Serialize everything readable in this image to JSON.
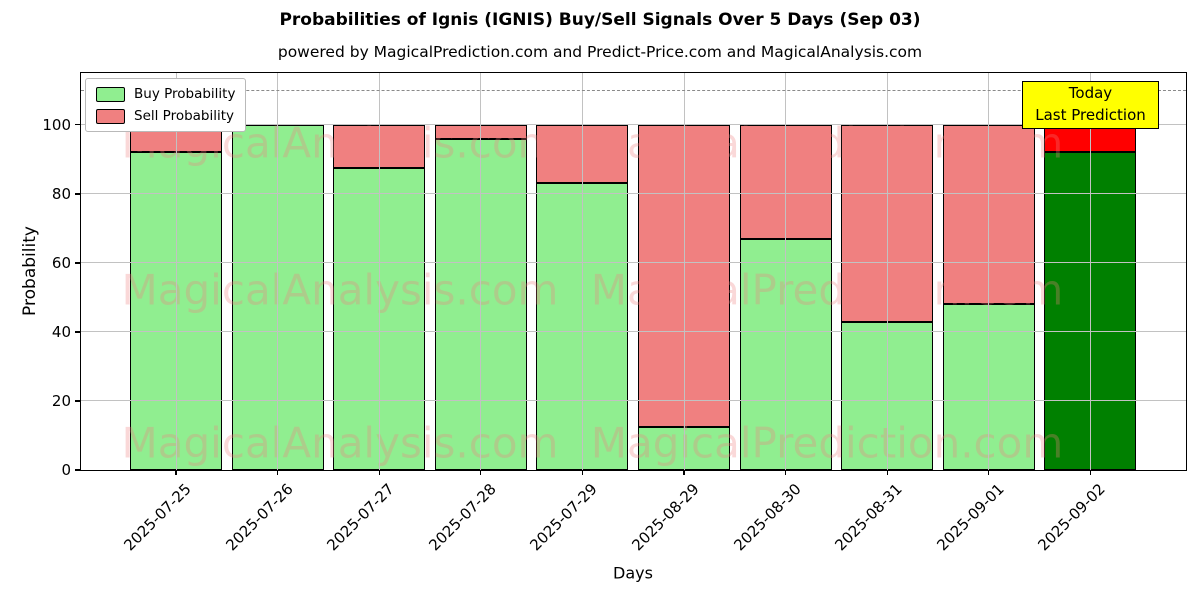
{
  "header": {
    "title": "Probabilities of Ignis (IGNIS) Buy/Sell Signals Over 5 Days (Sep 03)",
    "subtitle": "powered by MagicalPrediction.com and Predict-Price.com and MagicalAnalysis.com"
  },
  "chart_data": {
    "type": "bar",
    "stacked": true,
    "title": "Probabilities of Ignis (IGNIS) Buy/Sell Signals Over 5 Days (Sep 03)",
    "xlabel": "Days",
    "ylabel": "Probability",
    "ylim": [
      0,
      115
    ],
    "yticks": [
      0,
      20,
      40,
      60,
      80,
      100
    ],
    "grid": true,
    "dashed_guide_y": 110,
    "categories": [
      "2025-07-25",
      "2025-07-26",
      "2025-07-27",
      "2025-07-28",
      "2025-07-29",
      "2025-08-29",
      "2025-08-30",
      "2025-08-31",
      "2025-09-01",
      "2025-09-02"
    ],
    "series": [
      {
        "name": "Buy Probability",
        "color": "#90EE90",
        "today_color": "#008000",
        "values": [
          92,
          100,
          87.5,
          96,
          83,
          12.5,
          67,
          43,
          48,
          92
        ]
      },
      {
        "name": "Sell Probability",
        "color": "#F08080",
        "today_color": "#FF0000",
        "values": [
          8,
          0,
          12.5,
          4,
          17,
          87.5,
          33,
          57,
          52,
          8
        ]
      }
    ],
    "legend": {
      "position": "upper left",
      "items": [
        {
          "label": "Buy Probability",
          "color": "#90EE90"
        },
        {
          "label": "Sell Probability",
          "color": "#F08080"
        }
      ]
    },
    "annotation": {
      "lines": [
        "Today",
        "Last Prediction"
      ],
      "bg_color": "#FFFF00",
      "target_category": "2025-09-02"
    },
    "watermarks": {
      "texts": [
        "MagicalAnalysis.com",
        "MagicalPrediction.com"
      ],
      "color": "#F08080"
    }
  }
}
